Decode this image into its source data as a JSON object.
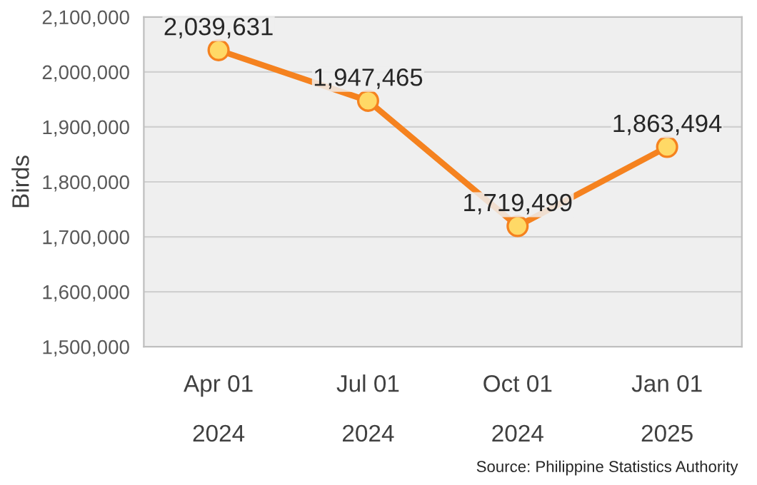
{
  "chart_data": {
    "type": "line",
    "ylabel": "Birds",
    "categories": [
      "Apr 01\n2024",
      "Jul 01\n2024",
      "Oct 01\n2024",
      "Jan 01\n2025"
    ],
    "series": [
      {
        "color": "#f5821f",
        "values": [
          2039631,
          1947465,
          1719499,
          1863494
        ],
        "value_labels": [
          "2,039,631",
          "1,947,465",
          "1,719,499",
          "1,863,494"
        ]
      }
    ],
    "ylim": [
      1500000,
      2100000
    ],
    "yticks": [
      {
        "value": 1500000,
        "label": "1,500,000"
      },
      {
        "value": 1600000,
        "label": "1,600,000"
      },
      {
        "value": 1700000,
        "label": "1,700,000"
      },
      {
        "value": 1800000,
        "label": "1,800,000"
      },
      {
        "value": 1900000,
        "label": "1,900,000"
      },
      {
        "value": 2000000,
        "label": "2,000,000"
      },
      {
        "value": 2100000,
        "label": "2,100,000"
      }
    ],
    "grid": "y",
    "marker": "circle",
    "line_style": "solid",
    "annotations": [
      "Source: Philippine Statistics Authority"
    ]
  }
}
